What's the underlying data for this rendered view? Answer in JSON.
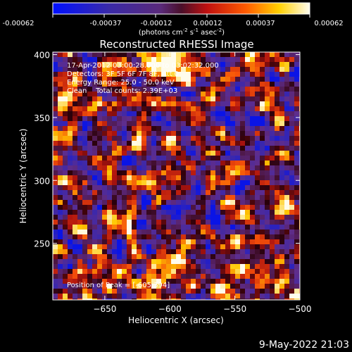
{
  "colorbar": {
    "tick_labels": [
      "-0.00062",
      "-0.00037",
      "-0.00012",
      "0.00012",
      "0.00037",
      "0.00062"
    ],
    "units_prefix": "(photons cm",
    "units_exp1": "-2",
    "units_mid": " s",
    "units_exp2": "-1",
    "units_mid2": " asec",
    "units_exp3": "-2",
    "units_suffix": ")",
    "range": [
      -0.00062,
      0.00062
    ]
  },
  "chart_data": {
    "type": "heatmap",
    "title": "Reconstructed RHESSI Image",
    "xlabel": "Heliocentric X (arcsec)",
    "ylabel": "Heliocentric Y (arcsec)",
    "xlim": [
      -690,
      -500
    ],
    "ylim": [
      205,
      402
    ],
    "x_ticks": [
      -650,
      -600,
      -550,
      -500
    ],
    "x_tick_labels": [
      "−650",
      "−600",
      "−550",
      "−500"
    ],
    "y_ticks": [
      250,
      300,
      350,
      400
    ],
    "y_tick_labels": [
      "250",
      "300",
      "350",
      "400"
    ],
    "annotations": [
      "17-Apr-2012 03:00:28.000 to 03:02:32.000",
      "Detectors: 3F 5F 6F 7F 8F, Att 0",
      "Energy Range: 25.0 - 50.0 keV",
      "Clean    Total counts: 2.39E+03"
    ],
    "peak_label": "Position of Peak = [-605,394]",
    "peak_position": [
      -605,
      394
    ],
    "colormap": "blue-purple-red-yellow-white (RHESSI diverging)"
  },
  "timestamp": "9-May-2022 21:03"
}
